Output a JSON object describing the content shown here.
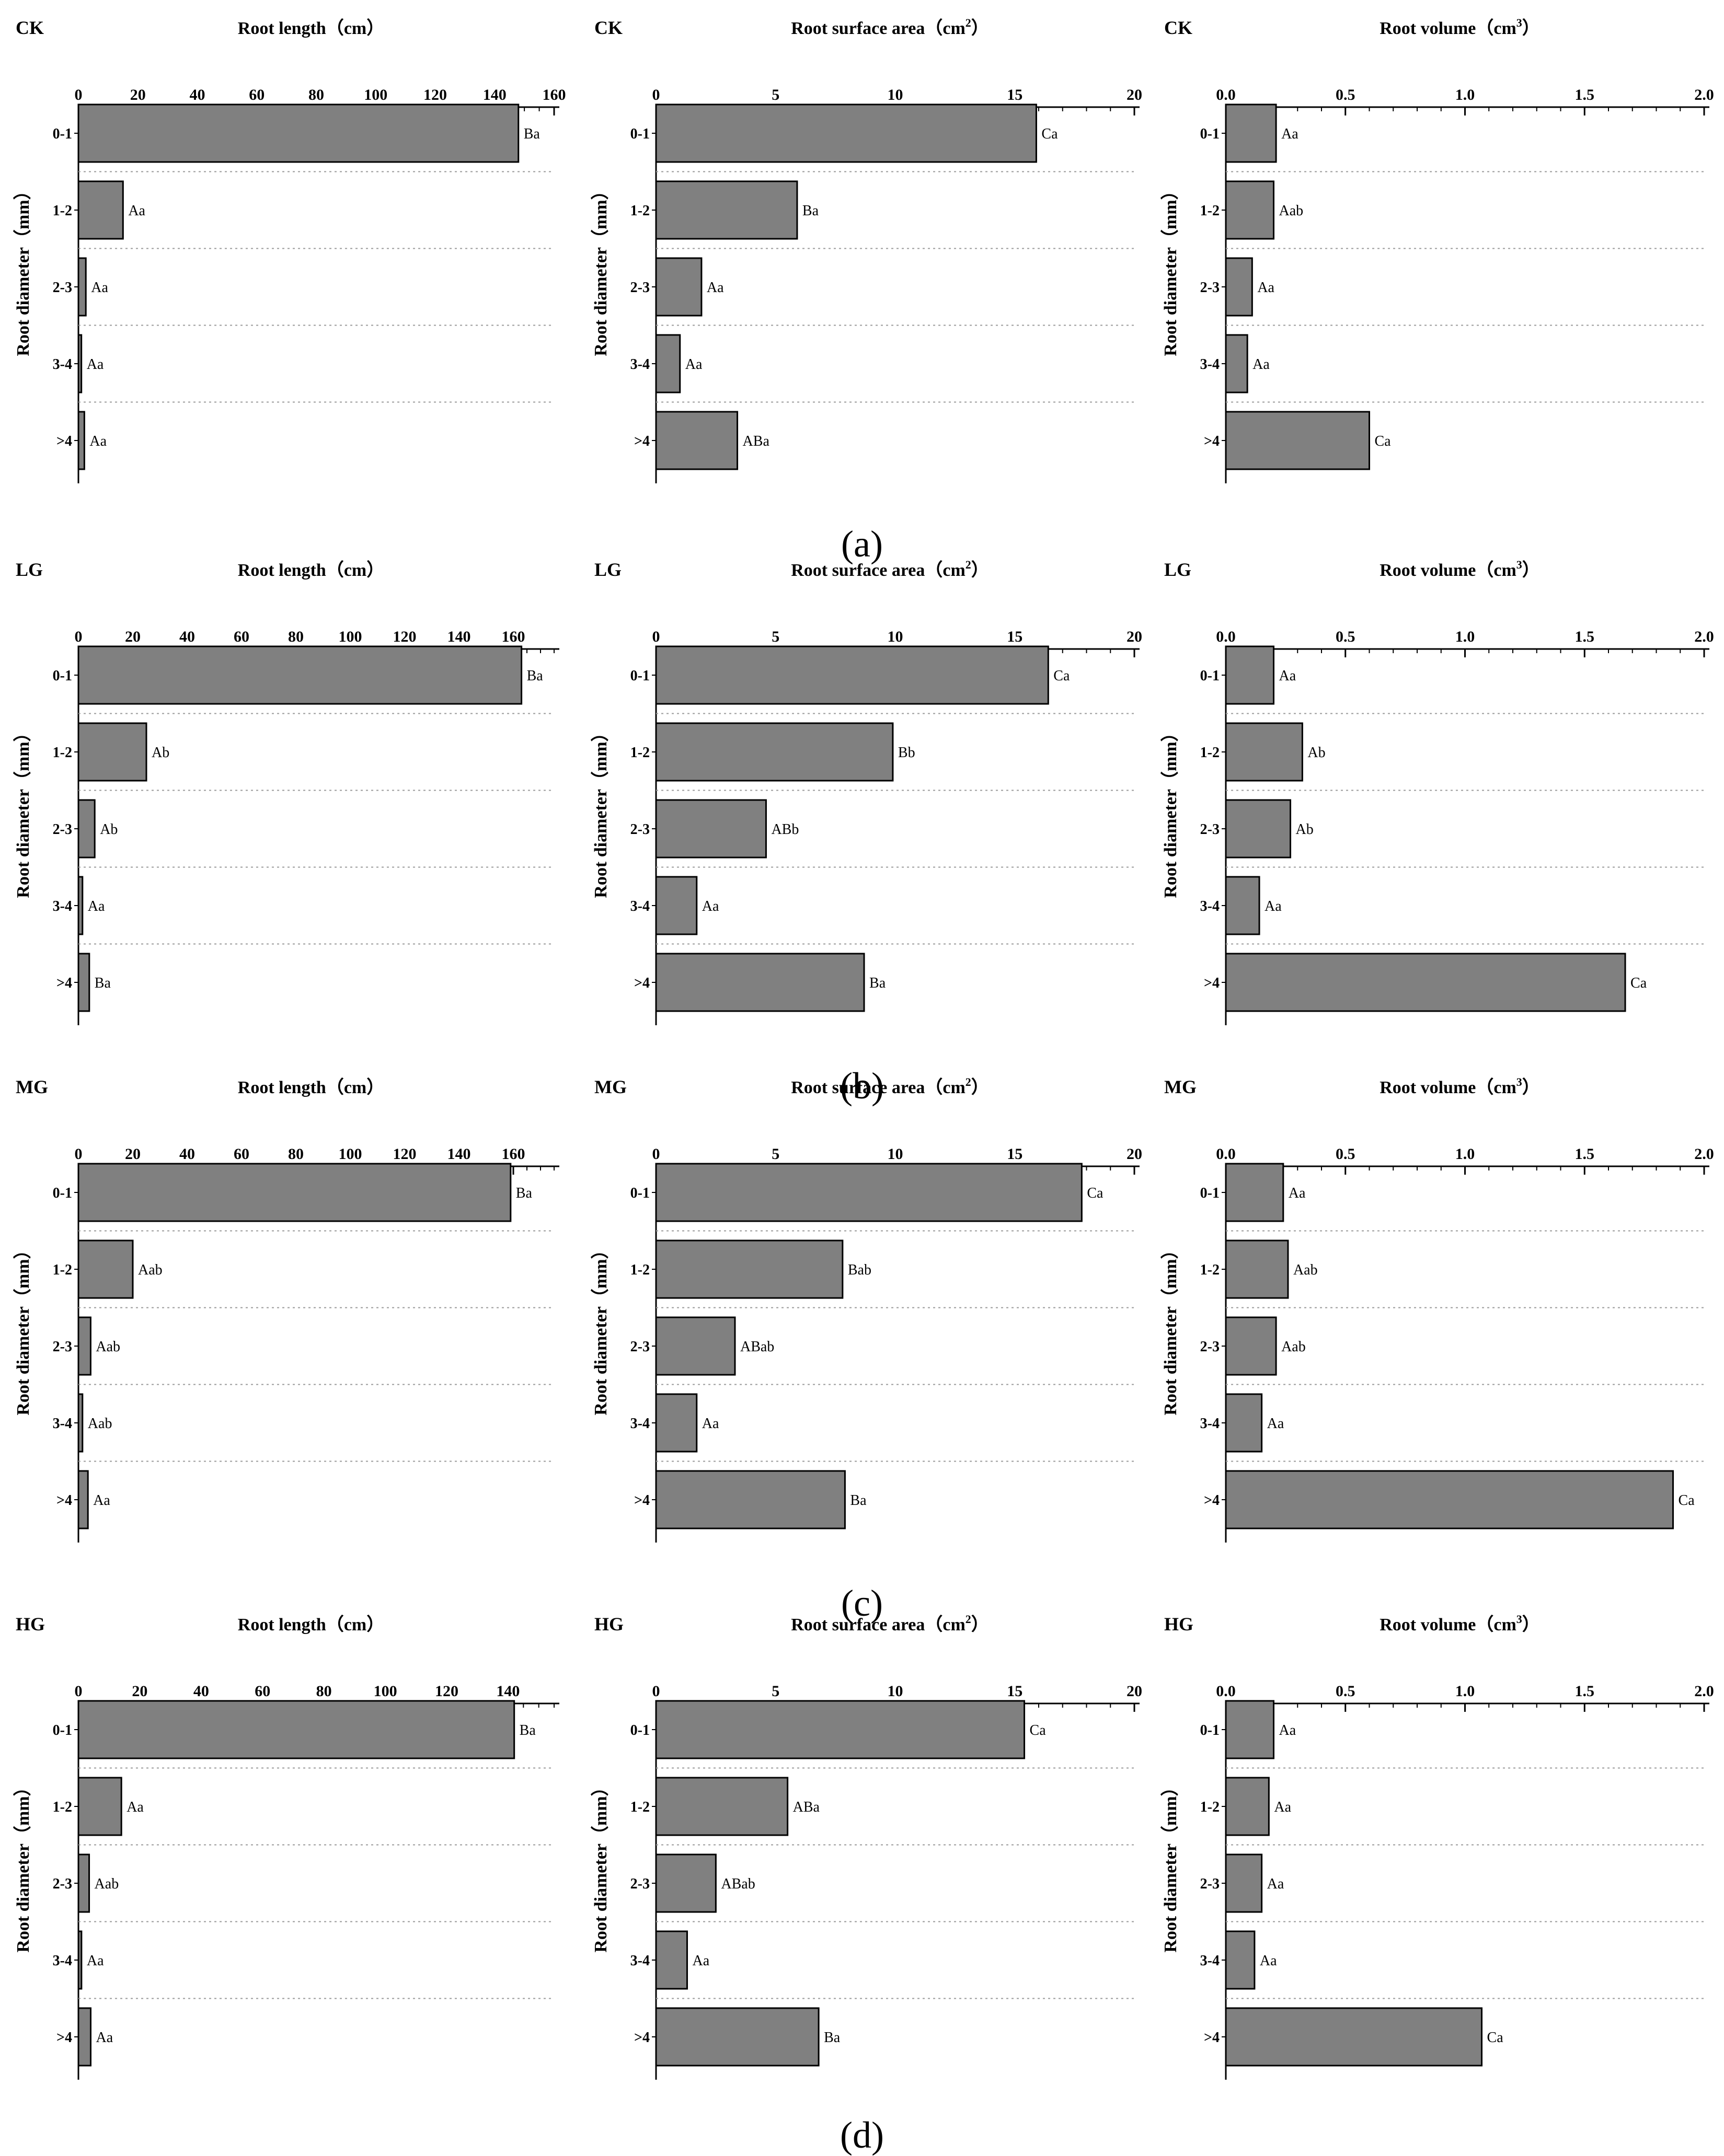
{
  "figure": {
    "y_axis_label": "Root diameter（mm）",
    "categories": [
      "0-1",
      "1-2",
      "2-3",
      "3-4",
      ">4"
    ],
    "bar_color": "#808080",
    "grid_color": "#9a9a9a"
  },
  "chart_data": [
    {
      "panel": "a",
      "panel_label": "(a)",
      "group": "CK",
      "charts": [
        {
          "type": "bar",
          "orientation": "horizontal",
          "title": "Root length（cm）",
          "unit_sup": "",
          "xlim": [
            0,
            160
          ],
          "ticks": [
            0,
            20,
            40,
            60,
            80,
            100,
            120,
            140,
            160
          ],
          "minor_step": 5,
          "values": [
            148,
            15,
            2.5,
            1,
            2
          ],
          "letters": [
            "Ba",
            "Aa",
            "Aa",
            "Aa",
            "Aa"
          ]
        },
        {
          "type": "bar",
          "orientation": "horizontal",
          "title": "Root surface area（cm",
          "unit_sup": "2",
          "xlim": [
            0,
            20
          ],
          "ticks": [
            0,
            5,
            10,
            15,
            20
          ],
          "minor_step": 1,
          "values": [
            15.9,
            5.9,
            1.9,
            1.0,
            3.4
          ],
          "letters": [
            "Ca",
            "Ba",
            "Aa",
            "Aa",
            "ABa"
          ]
        },
        {
          "type": "bar",
          "orientation": "horizontal",
          "title": "Root volume（cm",
          "unit_sup": "3",
          "xlim": [
            0,
            2.0
          ],
          "ticks": [
            "0.0",
            "0.5",
            "1.0",
            "1.5",
            "2.0"
          ],
          "minor_step": 0.1,
          "values": [
            0.21,
            0.2,
            0.11,
            0.09,
            0.6
          ],
          "letters": [
            "Aa",
            "Aab",
            "Aa",
            "Aa",
            "Ca"
          ]
        }
      ]
    },
    {
      "panel": "b",
      "panel_label": "(b)",
      "group": "LG",
      "charts": [
        {
          "type": "bar",
          "orientation": "horizontal",
          "title": "Root length（cm）",
          "unit_sup": "",
          "xlim": [
            0,
            175
          ],
          "ticks": [
            0,
            20,
            40,
            60,
            80,
            100,
            120,
            140,
            160
          ],
          "minor_step": 5,
          "values": [
            163,
            25,
            6,
            1.5,
            4
          ],
          "letters": [
            "Ba",
            "Ab",
            "Ab",
            "Aa",
            "Ba"
          ]
        },
        {
          "type": "bar",
          "orientation": "horizontal",
          "title": "Root surface area（cm",
          "unit_sup": "2",
          "xlim": [
            0,
            20
          ],
          "ticks": [
            0,
            5,
            10,
            15,
            20
          ],
          "minor_step": 1,
          "values": [
            16.4,
            9.9,
            4.6,
            1.7,
            8.7
          ],
          "letters": [
            "Ca",
            "Bb",
            "ABb",
            "Aa",
            "Ba"
          ]
        },
        {
          "type": "bar",
          "orientation": "horizontal",
          "title": "Root volume（cm",
          "unit_sup": "3",
          "xlim": [
            0,
            2.0
          ],
          "ticks": [
            "0.0",
            "0.5",
            "1.0",
            "1.5",
            "2.0"
          ],
          "minor_step": 0.1,
          "values": [
            0.2,
            0.32,
            0.27,
            0.14,
            1.67
          ],
          "letters": [
            "Aa",
            "Ab",
            "Ab",
            "Aa",
            "Ca"
          ]
        }
      ]
    },
    {
      "panel": "c",
      "panel_label": "(c)",
      "group": "MG",
      "charts": [
        {
          "type": "bar",
          "orientation": "horizontal",
          "title": "Root length（cm）",
          "unit_sup": "",
          "xlim": [
            0,
            175
          ],
          "ticks": [
            0,
            20,
            40,
            60,
            80,
            100,
            120,
            140,
            160
          ],
          "minor_step": 5,
          "values": [
            159,
            20,
            4.5,
            1.5,
            3.5
          ],
          "letters": [
            "Ba",
            "Aab",
            "Aab",
            "Aab",
            "Aa"
          ]
        },
        {
          "type": "bar",
          "orientation": "horizontal",
          "title": "Root surface area（cm",
          "unit_sup": "2",
          "xlim": [
            0,
            20
          ],
          "ticks": [
            0,
            5,
            10,
            15,
            20
          ],
          "minor_step": 1,
          "values": [
            17.8,
            7.8,
            3.3,
            1.7,
            7.9
          ],
          "letters": [
            "Ca",
            "Bab",
            "ABab",
            "Aa",
            "Ba"
          ]
        },
        {
          "type": "bar",
          "orientation": "horizontal",
          "title": "Root volume（cm",
          "unit_sup": "3",
          "xlim": [
            0,
            2.0
          ],
          "ticks": [
            "0.0",
            "0.5",
            "1.0",
            "1.5",
            "2.0"
          ],
          "minor_step": 0.1,
          "values": [
            0.24,
            0.26,
            0.21,
            0.15,
            1.87
          ],
          "letters": [
            "Aa",
            "Aab",
            "Aab",
            "Aa",
            "Ca"
          ]
        }
      ]
    },
    {
      "panel": "d",
      "panel_label": "(d)",
      "group": "HG",
      "charts": [
        {
          "type": "bar",
          "orientation": "horizontal",
          "title": "Root length（cm）",
          "unit_sup": "",
          "xlim": [
            0,
            155
          ],
          "ticks": [
            0,
            20,
            40,
            60,
            80,
            100,
            120,
            140
          ],
          "minor_step": 5,
          "values": [
            142,
            14,
            3.5,
            1,
            4
          ],
          "letters": [
            "Ba",
            "Aa",
            "Aab",
            "Aa",
            "Aa"
          ]
        },
        {
          "type": "bar",
          "orientation": "horizontal",
          "title": "Root surface area（cm",
          "unit_sup": "2",
          "xlim": [
            0,
            20
          ],
          "ticks": [
            0,
            5,
            10,
            15,
            20
          ],
          "minor_step": 1,
          "values": [
            15.4,
            5.5,
            2.5,
            1.3,
            6.8
          ],
          "letters": [
            "Ca",
            "ABa",
            "ABab",
            "Aa",
            "Ba"
          ]
        },
        {
          "type": "bar",
          "orientation": "horizontal",
          "title": "Root volume（cm",
          "unit_sup": "3",
          "xlim": [
            0,
            2.0
          ],
          "ticks": [
            "0.0",
            "0.5",
            "1.0",
            "1.5",
            "2.0"
          ],
          "minor_step": 0.1,
          "values": [
            0.2,
            0.18,
            0.15,
            0.12,
            1.07
          ],
          "letters": [
            "Aa",
            "Aa",
            "Aa",
            "Aa",
            "Ca"
          ]
        }
      ]
    }
  ]
}
